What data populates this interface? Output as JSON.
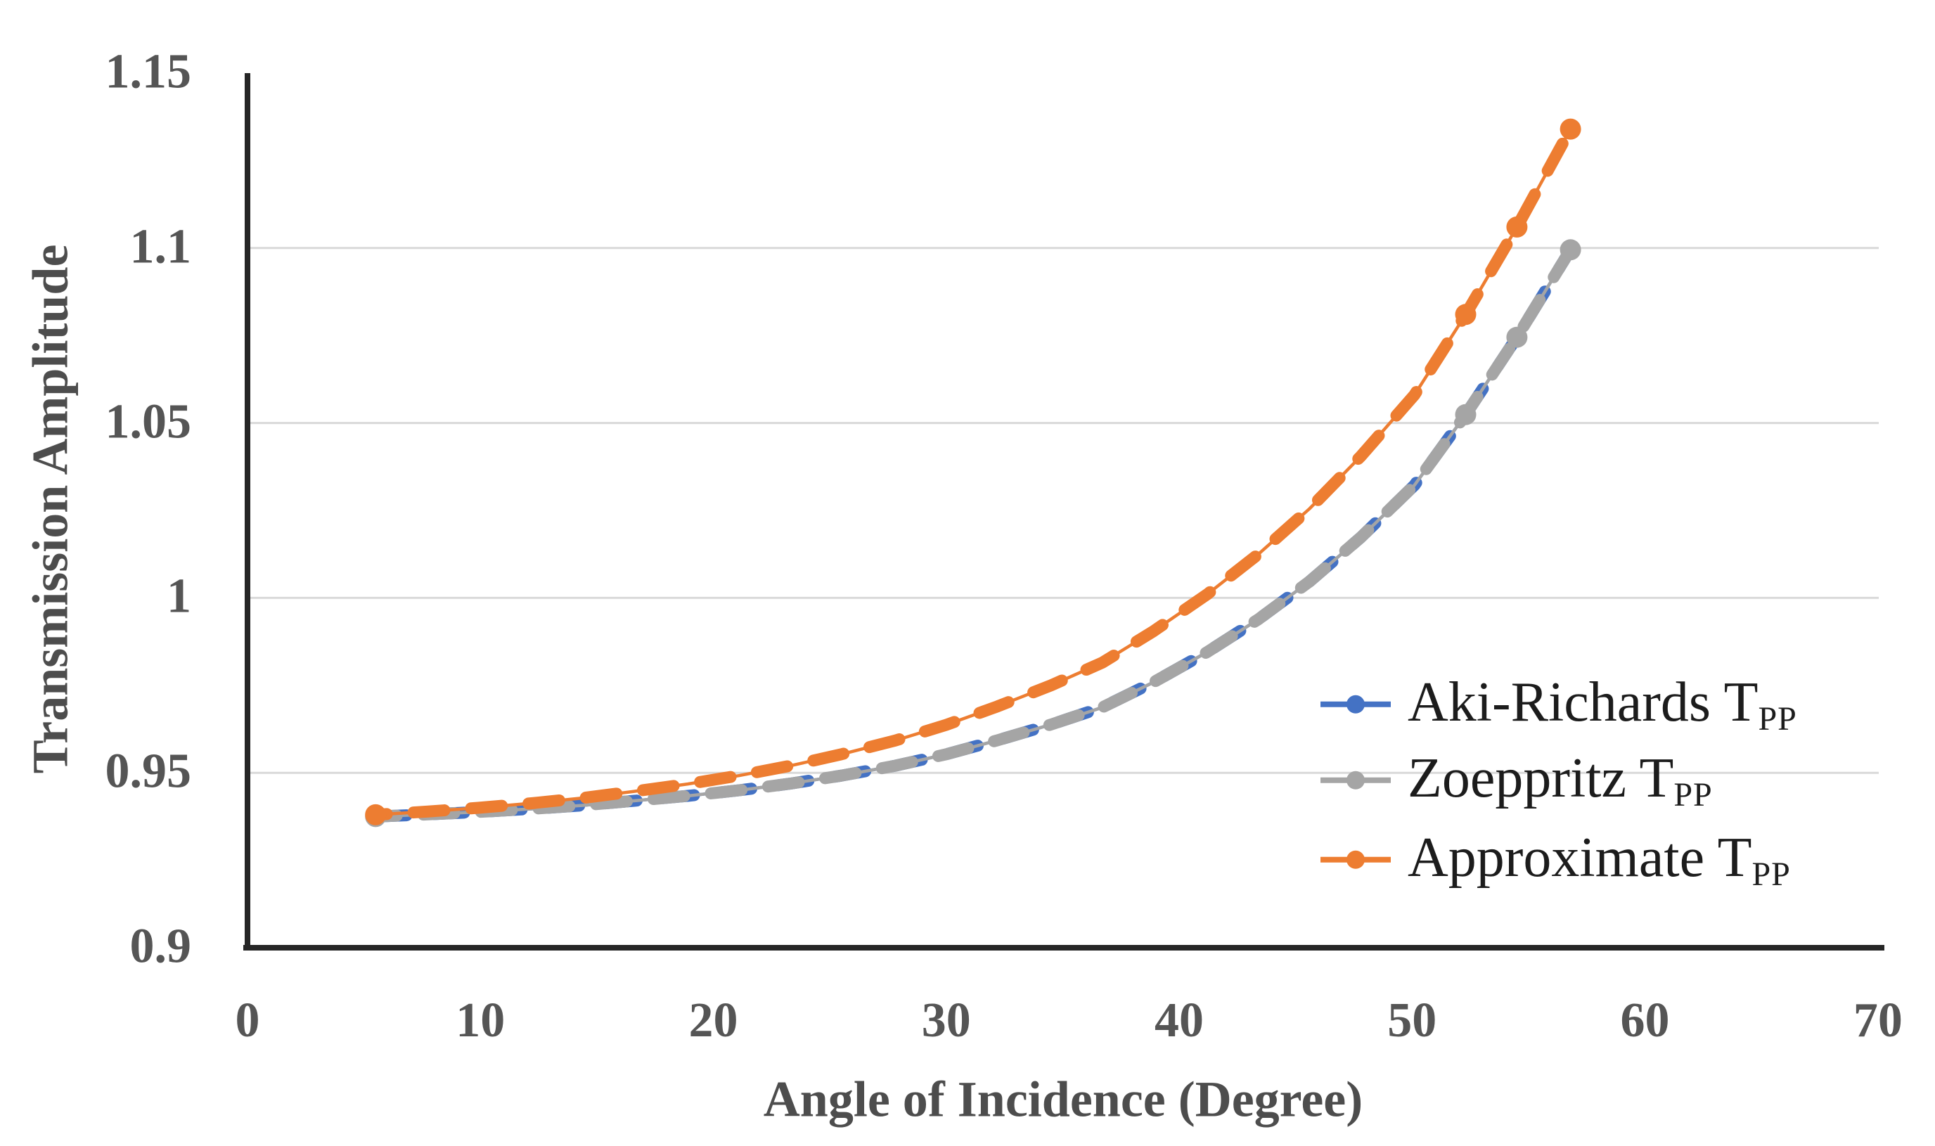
{
  "figure": {
    "background": "#ffffff",
    "axis_color": "#262626",
    "gridline_color": "#d9d9d9",
    "tick_label_color": "#555555",
    "axis_title_color": "#4d4d4d",
    "legend_text_color": "#1c1c1c"
  },
  "chart_data": {
    "type": "line",
    "title": "",
    "xlabel": "Angle of Incidence (Degree)",
    "ylabel": "Transmission Amplitude",
    "xlim": [
      0,
      70
    ],
    "ylim": [
      0.9,
      1.15
    ],
    "grid": "horizontal",
    "legend_position": "inside-right",
    "xticks": {
      "values": [
        0,
        10,
        20,
        30,
        40,
        50,
        60,
        70
      ],
      "labels": [
        "0",
        "10",
        "20",
        "30",
        "40",
        "50",
        "60",
        "70"
      ]
    },
    "yticks": {
      "values": [
        1.15,
        1.1,
        1.05,
        1.0,
        0.95,
        0.9
      ],
      "labels": [
        "1.15",
        "1.1",
        "1.05",
        "1",
        "0.95",
        "0.9"
      ]
    },
    "gridline_values": [
      1.1,
      1.05,
      1.0,
      0.95
    ],
    "x": [
      5.5,
      7.7,
      9.9,
      12.2,
      14.4,
      16.6,
      18.9,
      21.1,
      23.3,
      25.5,
      27.8,
      30.0,
      32.2,
      34.5,
      36.7,
      38.9,
      41.2,
      43.4,
      45.6,
      47.8,
      50.1,
      52.3,
      54.5,
      56.8
    ],
    "series": [
      {
        "name": "Aki-Richards T",
        "name_subscript": "PP",
        "color": "#4472C4",
        "note": "coincides with Zoeppritz curve and is hidden beneath it in the plot",
        "values": [
          0.9375,
          0.9381,
          0.9388,
          0.9397,
          0.9407,
          0.942,
          0.9434,
          0.945,
          0.9469,
          0.9492,
          0.952,
          0.9553,
          0.9593,
          0.9638,
          0.9687,
          0.9759,
          0.9845,
          0.9939,
          1.0047,
          1.0173,
          1.0322,
          1.0524,
          1.0745,
          1.0995
        ]
      },
      {
        "name": "Zoeppritz T",
        "name_subscript": "PP",
        "color": "#A5A5A5",
        "values": [
          0.9375,
          0.9381,
          0.9388,
          0.9397,
          0.9407,
          0.942,
          0.9434,
          0.945,
          0.9469,
          0.9492,
          0.952,
          0.9553,
          0.9593,
          0.9638,
          0.9687,
          0.9759,
          0.9845,
          0.9939,
          1.0047,
          1.0173,
          1.0322,
          1.0524,
          1.0745,
          1.0995
        ]
      },
      {
        "name": "Approximate T",
        "name_subscript": "PP",
        "color": "#ED7D31",
        "values": [
          0.938,
          0.9389,
          0.94,
          0.9413,
          0.9428,
          0.9447,
          0.9468,
          0.9492,
          0.952,
          0.9553,
          0.9592,
          0.9637,
          0.969,
          0.975,
          0.9815,
          0.9905,
          1.001,
          1.0125,
          1.0255,
          1.0405,
          1.058,
          1.081,
          1.106,
          1.134
        ]
      }
    ]
  }
}
